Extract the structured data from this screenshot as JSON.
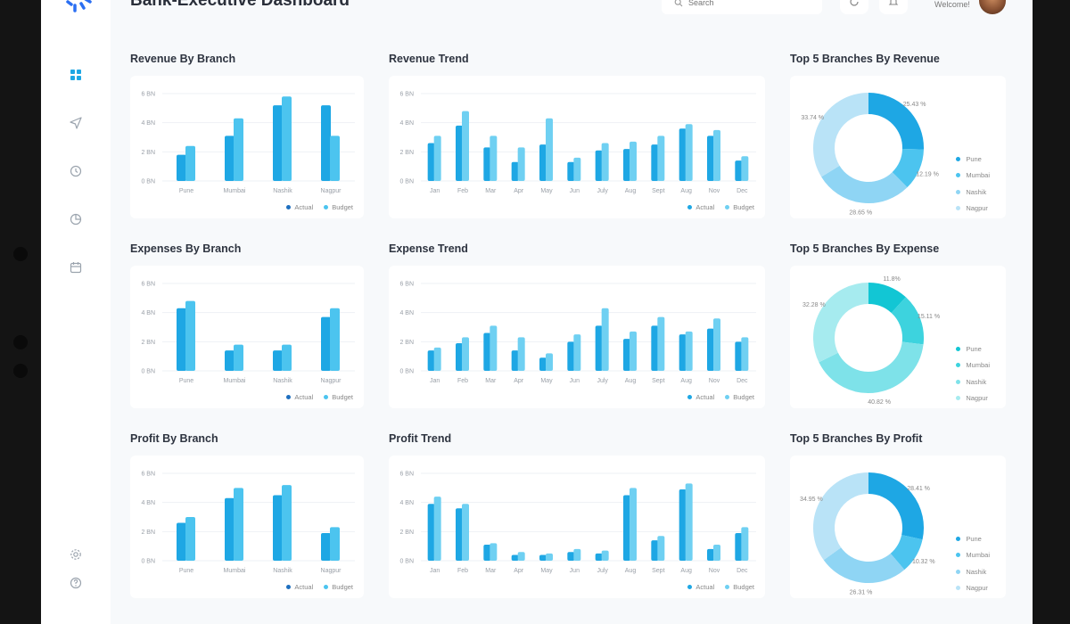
{
  "app": {
    "title": "Bank-Executive Dashboard",
    "search_placeholder": "Search",
    "welcome": "Welcome!"
  },
  "colors": {
    "actual": "#1ea7e4",
    "budget": "#4cc4ef",
    "pie": [
      "#1ea7e4",
      "#4cc4ef",
      "#8fd5f4",
      "#b9e3f7"
    ],
    "pie_exp": [
      "#12c6d4",
      "#3dd3de",
      "#7ee2e9",
      "#a6ebef"
    ]
  },
  "legend": {
    "actual": "Actual",
    "budget": "Budget"
  },
  "sections": {
    "revenue_branch": "Revenue By Branch",
    "revenue_trend": "Revenue Trend",
    "revenue_top": "Top 5 Branches By Revenue",
    "expense_branch": "Expenses By Branch",
    "expense_trend": "Expense Trend",
    "expense_top": "Top 5 Branches By Expense",
    "profit_branch": "Profit By Branch",
    "profit_trend": "Profit Trend",
    "profit_top": "Top 5 Branches By Profit"
  },
  "pie_legend": [
    "Pune",
    "Mumbai",
    "Nashik",
    "Nagpur"
  ],
  "chart_data": [
    {
      "id": "revenue_branch",
      "type": "bar",
      "categories": [
        "Pune",
        "Mumbai",
        "Nashik",
        "Nagpur"
      ],
      "y_ticks": [
        "0 BN",
        "2 BN",
        "4 BN",
        "6 BN"
      ],
      "ylim": [
        0,
        6
      ],
      "series": [
        {
          "name": "Actual",
          "values": [
            1.8,
            3.1,
            5.2,
            5.2
          ]
        },
        {
          "name": "Budget",
          "values": [
            2.4,
            4.3,
            5.8,
            3.1
          ]
        }
      ]
    },
    {
      "id": "revenue_trend",
      "type": "bar",
      "categories": [
        "Jan",
        "Feb",
        "Mar",
        "Apr",
        "May",
        "Jun",
        "July",
        "Aug",
        "Sept",
        "Aug",
        "Nov",
        "Dec"
      ],
      "y_ticks": [
        "0 BN",
        "2 BN",
        "4 BN",
        "6 BN"
      ],
      "ylim": [
        0,
        6
      ],
      "series": [
        {
          "name": "Actual",
          "values": [
            2.6,
            3.8,
            2.3,
            1.3,
            2.5,
            1.3,
            2.1,
            2.2,
            2.5,
            3.6,
            3.1,
            1.4
          ]
        },
        {
          "name": "Budget",
          "values": [
            3.1,
            4.8,
            3.1,
            2.3,
            4.3,
            1.6,
            2.6,
            2.7,
            3.1,
            3.9,
            3.5,
            1.7
          ]
        }
      ]
    },
    {
      "id": "revenue_top",
      "type": "pie",
      "labels": [
        "Pune",
        "Mumbai",
        "Nashik",
        "Nagpur"
      ],
      "values": [
        25.43,
        12.19,
        28.65,
        33.74
      ],
      "value_labels": [
        "25.43 %",
        "12.19 %",
        "28.65 %",
        "33.74 %"
      ]
    },
    {
      "id": "expense_branch",
      "type": "bar",
      "categories": [
        "Pune",
        "Mumbai",
        "Nashik",
        "Nagpur"
      ],
      "y_ticks": [
        "0 BN",
        "2 BN",
        "4 BN",
        "6 BN"
      ],
      "ylim": [
        0,
        6
      ],
      "series": [
        {
          "name": "Actual",
          "values": [
            4.3,
            1.4,
            1.4,
            3.7
          ]
        },
        {
          "name": "Budget",
          "values": [
            4.8,
            1.8,
            1.8,
            4.3
          ]
        }
      ]
    },
    {
      "id": "expense_trend",
      "type": "bar",
      "categories": [
        "Jan",
        "Feb",
        "Mar",
        "Apr",
        "May",
        "Jun",
        "July",
        "Aug",
        "Sept",
        "Aug",
        "Nov",
        "Dec"
      ],
      "y_ticks": [
        "0 BN",
        "2 BN",
        "4 BN",
        "6 BN"
      ],
      "ylim": [
        0,
        6
      ],
      "series": [
        {
          "name": "Actual",
          "values": [
            1.4,
            1.9,
            2.6,
            1.4,
            0.9,
            2.0,
            3.1,
            2.2,
            3.1,
            2.5,
            2.9,
            2.0
          ]
        },
        {
          "name": "Budget",
          "values": [
            1.6,
            2.3,
            3.1,
            2.3,
            1.2,
            2.5,
            4.3,
            2.7,
            3.7,
            2.7,
            3.6,
            2.3
          ]
        }
      ]
    },
    {
      "id": "expense_top",
      "type": "pie",
      "labels": [
        "Pune",
        "Mumbai",
        "Nashik",
        "Nagpur"
      ],
      "values": [
        11.8,
        15.11,
        40.82,
        32.28
      ],
      "value_labels": [
        "11.8%",
        "15.11 %",
        "40.82 %",
        "32.28 %"
      ]
    },
    {
      "id": "profit_branch",
      "type": "bar",
      "categories": [
        "Pune",
        "Mumbai",
        "Nashik",
        "Nagpur"
      ],
      "y_ticks": [
        "0 BN",
        "2 BN",
        "4 BN",
        "6 BN"
      ],
      "ylim": [
        0,
        6
      ],
      "series": [
        {
          "name": "Actual",
          "values": [
            2.6,
            4.3,
            4.5,
            1.9
          ]
        },
        {
          "name": "Budget",
          "values": [
            3.0,
            5.0,
            5.2,
            2.3
          ]
        }
      ]
    },
    {
      "id": "profit_trend",
      "type": "bar",
      "categories": [
        "Jan",
        "Feb",
        "Mar",
        "Apr",
        "May",
        "Jun",
        "July",
        "Aug",
        "Sept",
        "Aug",
        "Nov",
        "Dec"
      ],
      "y_ticks": [
        "0 BN",
        "2 BN",
        "4 BN",
        "6 BN"
      ],
      "ylim": [
        0,
        6
      ],
      "series": [
        {
          "name": "Actual",
          "values": [
            3.9,
            3.6,
            1.1,
            0.4,
            0.4,
            0.6,
            0.5,
            4.5,
            1.4,
            4.9,
            0.8,
            1.9
          ]
        },
        {
          "name": "Budget",
          "values": [
            4.4,
            3.9,
            1.2,
            0.6,
            0.5,
            0.8,
            0.7,
            5.0,
            1.7,
            5.3,
            1.1,
            2.3
          ]
        }
      ]
    },
    {
      "id": "profit_top",
      "type": "pie",
      "labels": [
        "Pune",
        "Mumbai",
        "Nashik",
        "Nagpur"
      ],
      "values": [
        28.41,
        10.32,
        26.31,
        34.95
      ],
      "value_labels": [
        "28.41 %",
        "10.32 %",
        "26.31 %",
        "34.95 %"
      ]
    }
  ]
}
